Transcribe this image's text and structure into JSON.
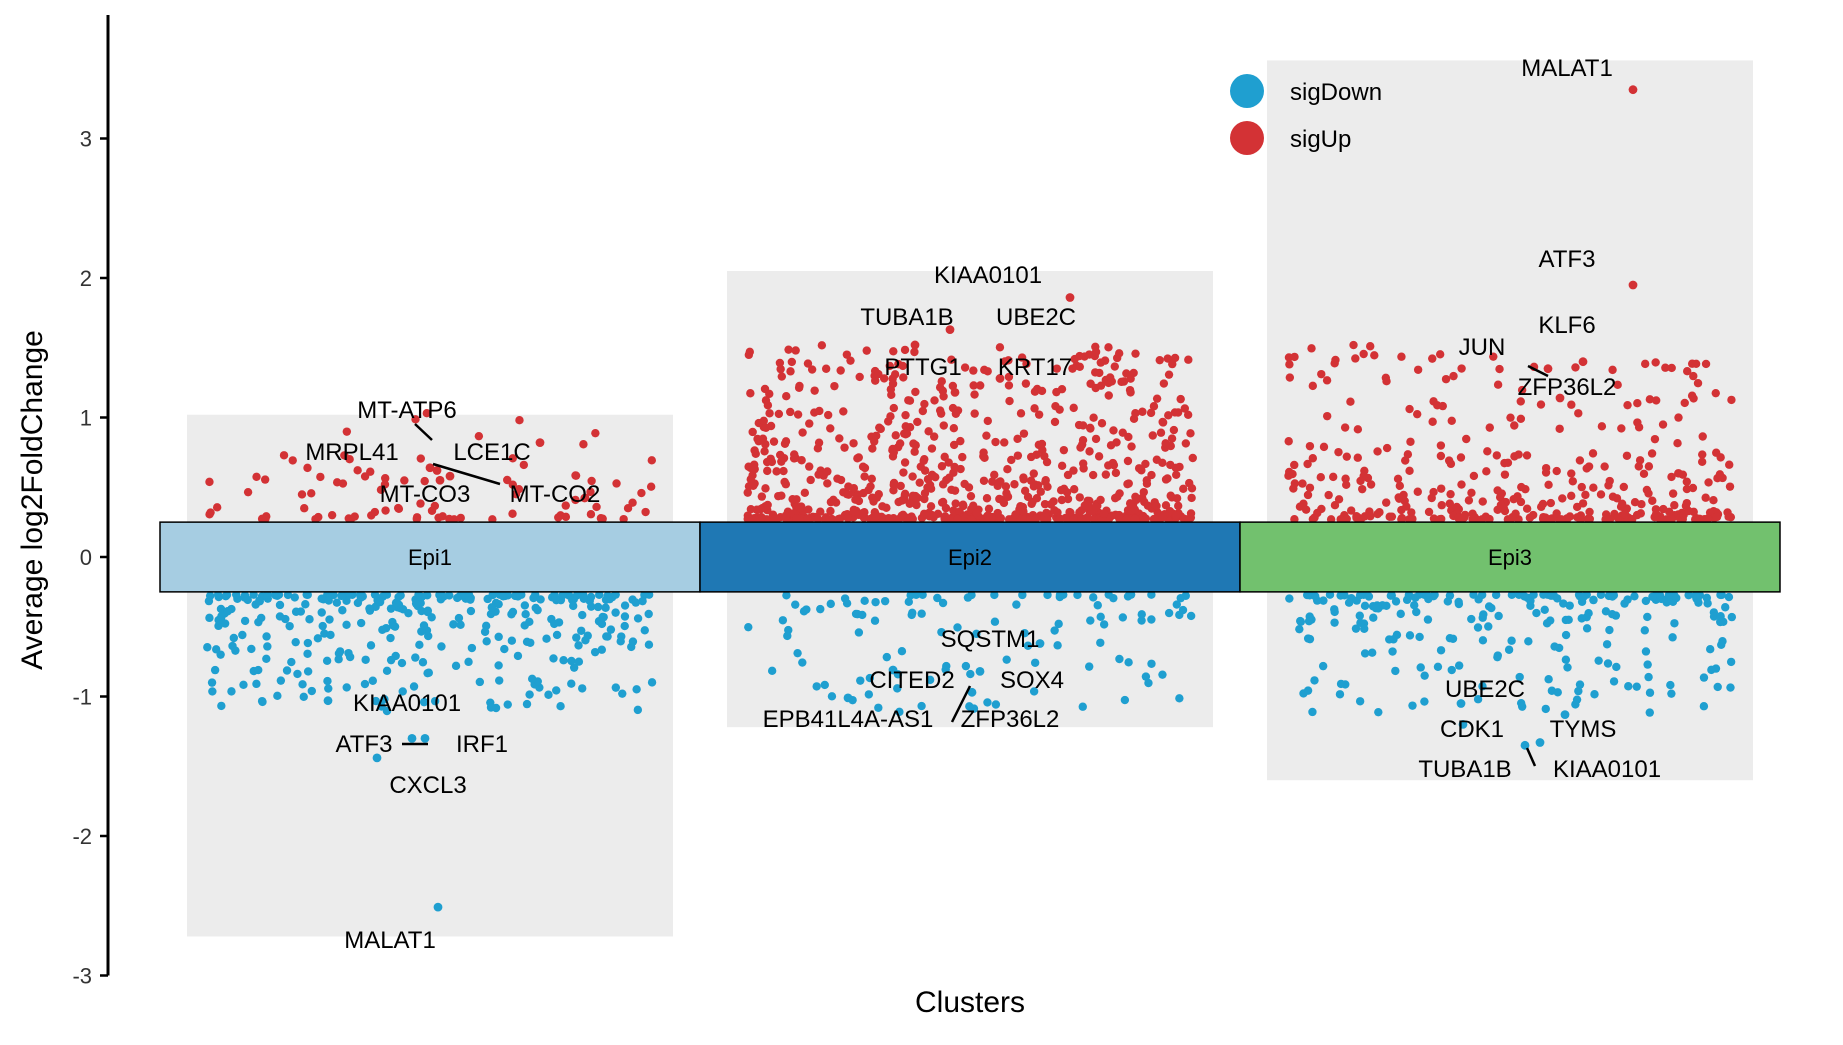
{
  "chart_data": {
    "type": "scatter",
    "title": "",
    "xlabel": "Clusters",
    "ylabel": "Average log2FoldChange",
    "ylim": [
      -3,
      3.8
    ],
    "yticks": [
      -3,
      -2,
      -1,
      0,
      1,
      2,
      3
    ],
    "ytick_labels": [
      "-3",
      "-2",
      "-1",
      "0",
      "1",
      "2",
      "3"
    ],
    "legend_position": "top-right",
    "colors": {
      "sigDown": "#1f9fd0",
      "sigUp": "#d33235",
      "background_box": "#ececec",
      "Epi1": "#a6cde2",
      "Epi2": "#1f78b4",
      "Epi3": "#72c16e"
    },
    "legend": [
      {
        "name": "sigDown",
        "color": "#1f9fd0"
      },
      {
        "name": "sigUp",
        "color": "#d33235"
      }
    ],
    "band_half_height": 0.25,
    "clusters": [
      {
        "name": "Epi1",
        "max_fc": 1.02,
        "min_fc": -2.72,
        "up_count": 90,
        "down_count": 330,
        "labeled_points": [
          {
            "gene": "MT-ATP6",
            "value": 0.64,
            "direction": "up"
          },
          {
            "gene": "MRPL41",
            "value": 0.62,
            "direction": "up"
          },
          {
            "gene": "LCE1C",
            "value": 0.58,
            "direction": "up"
          },
          {
            "gene": "MT-CO3",
            "value": 0.55,
            "direction": "up"
          },
          {
            "gene": "MT-CO2",
            "value": 0.82,
            "direction": "up"
          },
          {
            "gene": "KIAA0101",
            "value": -1.03,
            "direction": "down"
          },
          {
            "gene": "ATF3",
            "value": -1.3,
            "direction": "down"
          },
          {
            "gene": "IRF1",
            "value": -1.3,
            "direction": "down"
          },
          {
            "gene": "CXCL3",
            "value": -1.44,
            "direction": "down"
          },
          {
            "gene": "MALAT1",
            "value": -2.51,
            "direction": "down"
          }
        ]
      },
      {
        "name": "Epi2",
        "max_fc": 2.05,
        "min_fc": -1.22,
        "up_count": 760,
        "down_count": 110,
        "labeled_points": [
          {
            "gene": "KIAA0101",
            "value": 1.63,
            "direction": "up"
          },
          {
            "gene": "TUBA1B",
            "value": 1.52,
            "direction": "up"
          },
          {
            "gene": "UBE2C",
            "value": 1.86,
            "direction": "up"
          },
          {
            "gene": "PTTG1",
            "value": 1.18,
            "direction": "up"
          },
          {
            "gene": "KRT17",
            "value": 1.28,
            "direction": "up"
          },
          {
            "gene": "SQSTM1",
            "value": -0.62,
            "direction": "down"
          },
          {
            "gene": "CITED2",
            "value": -0.81,
            "direction": "down"
          },
          {
            "gene": "SOX4",
            "value": -0.82,
            "direction": "down"
          },
          {
            "gene": "EPB41L4A-AS1",
            "value": -1.01,
            "direction": "down"
          },
          {
            "gene": "ZFP36L2",
            "value": -0.97,
            "direction": "down"
          }
        ]
      },
      {
        "name": "Epi3",
        "max_fc": 3.56,
        "min_fc": -1.6,
        "up_count": 360,
        "down_count": 230,
        "labeled_points": [
          {
            "gene": "MALAT1",
            "value": 3.35,
            "direction": "up"
          },
          {
            "gene": "ATF3",
            "value": 1.95,
            "direction": "up"
          },
          {
            "gene": "KLF6",
            "value": 1.4,
            "direction": "up"
          },
          {
            "gene": "JUN",
            "value": 1.35,
            "direction": "up"
          },
          {
            "gene": "ZFP36L2",
            "value": 1.14,
            "direction": "up"
          },
          {
            "gene": "UBE2C",
            "value": -1.05,
            "direction": "down"
          },
          {
            "gene": "CDK1",
            "value": -1.2,
            "direction": "down"
          },
          {
            "gene": "TYMS",
            "value": -1.13,
            "direction": "down"
          },
          {
            "gene": "TUBA1B",
            "value": -1.33,
            "direction": "down"
          },
          {
            "gene": "KIAA0101",
            "value": -1.35,
            "direction": "down"
          }
        ]
      }
    ]
  }
}
